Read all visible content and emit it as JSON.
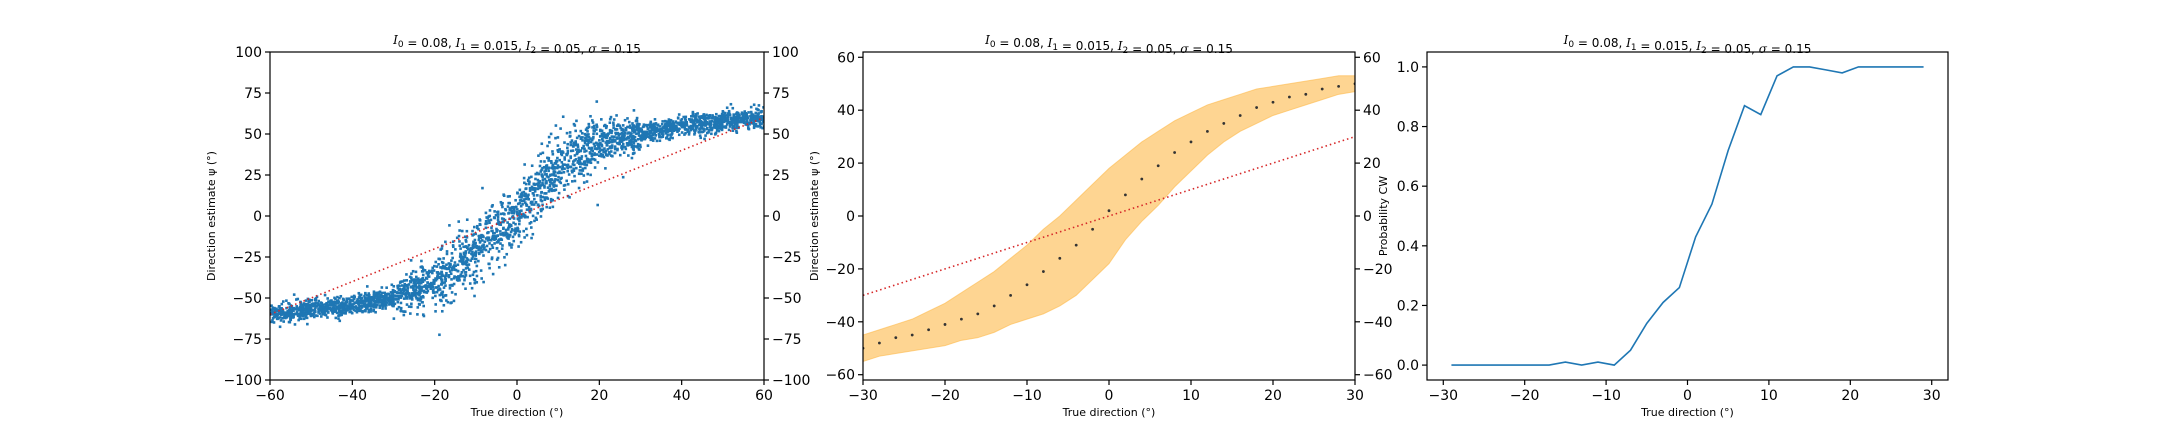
{
  "colors": {
    "scatter": "#1f77b4",
    "line": "#1f77b4",
    "identity": "#d62728",
    "band": "#fdb94a",
    "mean_dot": "#333333"
  },
  "chart_data": [
    {
      "id": "scatter",
      "type": "scatter",
      "title": "I_0 = 0.08, I_1 = 0.015, I_2 = 0.05, σ = 0.15",
      "title_parts": [
        {
          "t": "I",
          "m": true
        },
        {
          "t": "0",
          "sub": true
        },
        {
          "t": " = 0.08, ",
          "m": false
        },
        {
          "t": "I",
          "m": true
        },
        {
          "t": "1",
          "sub": true
        },
        {
          "t": " = 0.015, ",
          "m": false
        },
        {
          "t": "I",
          "m": true
        },
        {
          "t": "2",
          "sub": true
        },
        {
          "t": " = 0.05, ",
          "m": false
        },
        {
          "t": "σ",
          "m": true
        },
        {
          "t": " = 0.15",
          "m": false
        }
      ],
      "xlabel": "True direction (°)",
      "ylabel": "Direction estimate ψ (°)",
      "xlim": [
        -60,
        60
      ],
      "ylim": [
        -100,
        100
      ],
      "xticks": [
        -60,
        -40,
        -20,
        0,
        20,
        40,
        60
      ],
      "yticks": [
        -100,
        -75,
        -50,
        -25,
        0,
        25,
        50,
        75,
        100
      ],
      "ytick_labels": [
        "−100",
        "−75",
        "−50",
        "−25",
        "0",
        "25",
        "50",
        "75",
        "100"
      ],
      "xtick_labels": [
        "−60",
        "−40",
        "−20",
        "0",
        "20",
        "40",
        "60"
      ],
      "right_yaxis": true,
      "trend": {
        "x": [
          -60,
          -50,
          -40,
          -30,
          -25,
          -20,
          -15,
          -10,
          -5,
          0,
          5,
          10,
          15,
          20,
          30,
          40,
          50,
          60
        ],
        "y": [
          -60,
          -57,
          -54,
          -50,
          -45,
          -40,
          -30,
          -20,
          -10,
          0,
          15,
          30,
          38,
          45,
          50,
          55,
          58,
          60
        ]
      },
      "n_points": 3000,
      "identity_line": {
        "x": [
          -60,
          60
        ],
        "y": [
          -60,
          60
        ]
      }
    },
    {
      "id": "band",
      "type": "area",
      "title": "I_0 = 0.08, I_1 = 0.015, I_2 = 0.05, σ = 0.15",
      "title_parts": [
        {
          "t": "I",
          "m": true
        },
        {
          "t": "0",
          "sub": true
        },
        {
          "t": " = 0.08, ",
          "m": false
        },
        {
          "t": "I",
          "m": true
        },
        {
          "t": "1",
          "sub": true
        },
        {
          "t": " = 0.015, ",
          "m": false
        },
        {
          "t": "I",
          "m": true
        },
        {
          "t": "2",
          "sub": true
        },
        {
          "t": " = 0.05, ",
          "m": false
        },
        {
          "t": "σ",
          "m": true
        },
        {
          "t": " = 0.15",
          "m": false
        }
      ],
      "xlabel": "True direction (°)",
      "ylabel": "Direction estimate ψ (°)",
      "xlim": [
        -30,
        30
      ],
      "ylim": [
        -62,
        62
      ],
      "xticks": [
        -30,
        -20,
        -10,
        0,
        10,
        20,
        30
      ],
      "xtick_labels": [
        "−30",
        "−20",
        "−10",
        "0",
        "10",
        "20",
        "30"
      ],
      "yticks": [
        -60,
        -40,
        -20,
        0,
        20,
        40,
        60
      ],
      "ytick_labels": [
        "−60",
        "−40",
        "−20",
        "0",
        "20",
        "40",
        "60"
      ],
      "right_yaxis": true,
      "x": [
        -30,
        -28,
        -26,
        -24,
        -22,
        -20,
        -18,
        -16,
        -14,
        -12,
        -10,
        -8,
        -6,
        -4,
        -2,
        0,
        2,
        4,
        6,
        8,
        10,
        12,
        14,
        16,
        18,
        20,
        22,
        24,
        26,
        28,
        30
      ],
      "mean": [
        -50,
        -48,
        -46,
        -45,
        -43,
        -41,
        -39,
        -37,
        -34,
        -30,
        -26,
        -21,
        -16,
        -11,
        -5,
        2,
        8,
        14,
        19,
        24,
        28,
        32,
        35,
        38,
        41,
        43,
        45,
        46,
        48,
        49,
        50
      ],
      "upper": [
        -45,
        -43,
        -41,
        -39,
        -36,
        -33,
        -29,
        -25,
        -21,
        -16,
        -11,
        -5,
        0,
        6,
        12,
        18,
        23,
        28,
        32,
        36,
        39,
        42,
        44,
        46,
        48,
        49,
        50,
        51,
        52,
        53,
        53
      ],
      "lower": [
        -55,
        -53,
        -52,
        -51,
        -50,
        -49,
        -47,
        -46,
        -44,
        -41,
        -39,
        -37,
        -34,
        -30,
        -24,
        -18,
        -9,
        -2,
        4,
        11,
        17,
        23,
        28,
        32,
        35,
        38,
        40,
        42,
        44,
        46,
        47
      ],
      "identity_line": {
        "x": [
          -30,
          30
        ],
        "y": [
          -30,
          30
        ]
      }
    },
    {
      "id": "prob",
      "type": "line",
      "title": "I_0 = 0.08, I_1 = 0.015, I_2 = 0.05, σ = 0.15",
      "title_parts": [
        {
          "t": "I",
          "m": true
        },
        {
          "t": "0",
          "sub": true
        },
        {
          "t": " = 0.08, ",
          "m": false
        },
        {
          "t": "I",
          "m": true
        },
        {
          "t": "1",
          "sub": true
        },
        {
          "t": " = 0.015, ",
          "m": false
        },
        {
          "t": "I",
          "m": true
        },
        {
          "t": "2",
          "sub": true
        },
        {
          "t": " = 0.05, ",
          "m": false
        },
        {
          "t": "σ",
          "m": true
        },
        {
          "t": " = 0.15",
          "m": false
        }
      ],
      "xlabel": "True direction (°)",
      "ylabel": "Probability CW",
      "xlim": [
        -32,
        32
      ],
      "ylim": [
        -0.05,
        1.05
      ],
      "xticks": [
        -30,
        -20,
        -10,
        0,
        10,
        20,
        30
      ],
      "xtick_labels": [
        "−30",
        "−20",
        "−10",
        "0",
        "10",
        "20",
        "30"
      ],
      "yticks": [
        0,
        0.2,
        0.4,
        0.6,
        0.8,
        1.0
      ],
      "ytick_labels": [
        "0.0",
        "0.2",
        "0.4",
        "0.6",
        "0.8",
        "1.0"
      ],
      "right_yaxis": false,
      "x": [
        -29,
        -27,
        -25,
        -23,
        -21,
        -19,
        -17,
        -15,
        -13,
        -11,
        -9,
        -7,
        -5,
        -3,
        -1,
        1,
        3,
        5,
        7,
        9,
        11,
        13,
        15,
        17,
        19,
        21,
        23,
        25,
        27,
        29
      ],
      "y": [
        0,
        0,
        0,
        0,
        0,
        0,
        0,
        0.01,
        0,
        0.01,
        0,
        0.05,
        0.14,
        0.21,
        0.26,
        0.43,
        0.54,
        0.72,
        0.87,
        0.84,
        0.97,
        1.0,
        1.0,
        0.99,
        0.98,
        1.0,
        1.0,
        1.0,
        1.0,
        1.0
      ]
    }
  ]
}
